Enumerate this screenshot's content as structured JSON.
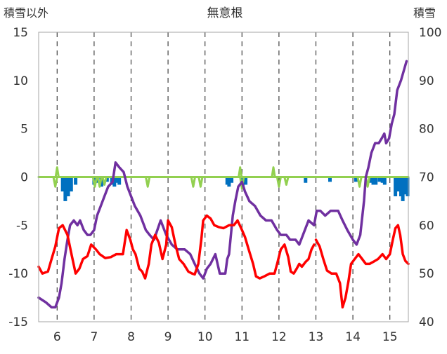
{
  "chart_data": {
    "type": "line",
    "title": "無意根",
    "y_left_title": "積雪以外",
    "y_right_title": "積雪",
    "ylim_left": [
      -15,
      15
    ],
    "ylim_right": [
      40,
      100
    ],
    "xlim": [
      5.5,
      15.5
    ],
    "y_left_ticks": [
      "15",
      "10",
      "5",
      "0",
      "-5",
      "-10",
      "-15"
    ],
    "y_right_ticks": [
      "100",
      "90",
      "80",
      "70",
      "60",
      "50",
      "40"
    ],
    "x_ticks": [
      "6",
      "7",
      "8",
      "9",
      "10",
      "11",
      "12",
      "13",
      "14",
      "15"
    ],
    "grid": "dashed vertical at each x tick",
    "series": [
      {
        "key": "snow_depth",
        "color": "#7030a0",
        "axis": "right",
        "points": [
          [
            5.5,
            45
          ],
          [
            5.7,
            44
          ],
          [
            5.85,
            43
          ],
          [
            5.95,
            43
          ],
          [
            6.05,
            45
          ],
          [
            6.12,
            48
          ],
          [
            6.2,
            53
          ],
          [
            6.28,
            57
          ],
          [
            6.35,
            60
          ],
          [
            6.45,
            61
          ],
          [
            6.55,
            60
          ],
          [
            6.62,
            61
          ],
          [
            6.72,
            59
          ],
          [
            6.82,
            58
          ],
          [
            6.9,
            58
          ],
          [
            7.0,
            59
          ],
          [
            7.08,
            62
          ],
          [
            7.18,
            64
          ],
          [
            7.28,
            66
          ],
          [
            7.38,
            68
          ],
          [
            7.5,
            69
          ],
          [
            7.58,
            73
          ],
          [
            7.68,
            72
          ],
          [
            7.8,
            71
          ],
          [
            7.9,
            68
          ],
          [
            8.0,
            66
          ],
          [
            8.1,
            64
          ],
          [
            8.25,
            62
          ],
          [
            8.4,
            59
          ],
          [
            8.5,
            58
          ],
          [
            8.62,
            57
          ],
          [
            8.8,
            61
          ],
          [
            8.95,
            58
          ],
          [
            9.1,
            56
          ],
          [
            9.25,
            55
          ],
          [
            9.45,
            55
          ],
          [
            9.6,
            54
          ],
          [
            9.72,
            52
          ],
          [
            9.85,
            50
          ],
          [
            9.95,
            49
          ],
          [
            10.05,
            51
          ],
          [
            10.15,
            52
          ],
          [
            10.28,
            54
          ],
          [
            10.4,
            50
          ],
          [
            10.55,
            50
          ],
          [
            10.6,
            53
          ],
          [
            10.65,
            54
          ],
          [
            10.75,
            62
          ],
          [
            10.82,
            65
          ],
          [
            10.9,
            68
          ],
          [
            11.0,
            69
          ],
          [
            11.08,
            67
          ],
          [
            11.2,
            65
          ],
          [
            11.35,
            64
          ],
          [
            11.5,
            62
          ],
          [
            11.65,
            61
          ],
          [
            11.8,
            61
          ],
          [
            11.95,
            59
          ],
          [
            12.05,
            58
          ],
          [
            12.2,
            58
          ],
          [
            12.3,
            57
          ],
          [
            12.45,
            57
          ],
          [
            12.55,
            56
          ],
          [
            12.65,
            58
          ],
          [
            12.8,
            61
          ],
          [
            12.95,
            60
          ],
          [
            13.02,
            63
          ],
          [
            13.12,
            63
          ],
          [
            13.25,
            62
          ],
          [
            13.4,
            63
          ],
          [
            13.5,
            63
          ],
          [
            13.6,
            63
          ],
          [
            13.72,
            61
          ],
          [
            13.85,
            59
          ],
          [
            14.0,
            57
          ],
          [
            14.1,
            56
          ],
          [
            14.2,
            58
          ],
          [
            14.3,
            65
          ],
          [
            14.35,
            70
          ],
          [
            14.42,
            72
          ],
          [
            14.5,
            75
          ],
          [
            14.6,
            77
          ],
          [
            14.7,
            77
          ],
          [
            14.78,
            78
          ],
          [
            14.85,
            79
          ],
          [
            14.9,
            77
          ],
          [
            14.98,
            78
          ],
          [
            15.05,
            81
          ],
          [
            15.12,
            83
          ],
          [
            15.2,
            88
          ],
          [
            15.3,
            90
          ],
          [
            15.45,
            94
          ]
        ]
      },
      {
        "key": "temperature",
        "color": "#ff0000",
        "axis": "left",
        "points": [
          [
            5.5,
            -9.3
          ],
          [
            5.6,
            -10.0
          ],
          [
            5.75,
            -9.8
          ],
          [
            5.85,
            -8.5
          ],
          [
            5.95,
            -7.2
          ],
          [
            6.05,
            -5.3
          ],
          [
            6.15,
            -5.0
          ],
          [
            6.28,
            -6.0
          ],
          [
            6.4,
            -8.2
          ],
          [
            6.5,
            -10.0
          ],
          [
            6.6,
            -9.5
          ],
          [
            6.7,
            -8.5
          ],
          [
            6.82,
            -8.2
          ],
          [
            6.92,
            -7.0
          ],
          [
            7.05,
            -7.5
          ],
          [
            7.15,
            -8.0
          ],
          [
            7.3,
            -8.4
          ],
          [
            7.45,
            -8.3
          ],
          [
            7.6,
            -8.0
          ],
          [
            7.78,
            -8.0
          ],
          [
            7.88,
            -5.5
          ],
          [
            7.98,
            -6.5
          ],
          [
            8.05,
            -7.5
          ],
          [
            8.12,
            -8.0
          ],
          [
            8.22,
            -9.5
          ],
          [
            8.3,
            -9.8
          ],
          [
            8.38,
            -10.5
          ],
          [
            8.48,
            -9.0
          ],
          [
            8.55,
            -7.0
          ],
          [
            8.65,
            -6.0
          ],
          [
            8.75,
            -6.8
          ],
          [
            8.85,
            -8.5
          ],
          [
            8.95,
            -7.0
          ],
          [
            9.0,
            -4.5
          ],
          [
            9.1,
            -5.2
          ],
          [
            9.2,
            -7.0
          ],
          [
            9.3,
            -8.5
          ],
          [
            9.42,
            -9.0
          ],
          [
            9.55,
            -9.8
          ],
          [
            9.65,
            -10.0
          ],
          [
            9.72,
            -10.1
          ],
          [
            9.82,
            -9.0
          ],
          [
            9.9,
            -6.5
          ],
          [
            9.95,
            -4.5
          ],
          [
            10.05,
            -4.0
          ],
          [
            10.15,
            -4.3
          ],
          [
            10.25,
            -5.0
          ],
          [
            10.38,
            -5.2
          ],
          [
            10.5,
            -5.3
          ],
          [
            10.65,
            -5.0
          ],
          [
            10.78,
            -5.0
          ],
          [
            10.88,
            -4.5
          ],
          [
            11.0,
            -5.5
          ],
          [
            11.08,
            -6.2
          ],
          [
            11.18,
            -7.5
          ],
          [
            11.3,
            -9.0
          ],
          [
            11.38,
            -10.3
          ],
          [
            11.48,
            -10.5
          ],
          [
            11.6,
            -10.3
          ],
          [
            11.75,
            -10.0
          ],
          [
            11.88,
            -10.0
          ],
          [
            11.95,
            -9.0
          ],
          [
            12.05,
            -7.5
          ],
          [
            12.15,
            -7.0
          ],
          [
            12.25,
            -8.3
          ],
          [
            12.32,
            -9.8
          ],
          [
            12.4,
            -10.0
          ],
          [
            12.48,
            -9.5
          ],
          [
            12.55,
            -9.0
          ],
          [
            12.62,
            -9.3
          ],
          [
            12.72,
            -8.8
          ],
          [
            12.8,
            -8.5
          ],
          [
            12.88,
            -7.5
          ],
          [
            12.95,
            -7.0
          ]
        ]
      },
      {
        "key": "temperature_2",
        "color": "#ff0000",
        "axis": "left",
        "points": [
          [
            13.0,
            -6.5
          ],
          [
            13.1,
            -7.2
          ],
          [
            13.2,
            -8.5
          ],
          [
            13.3,
            -9.7
          ],
          [
            13.42,
            -10.0
          ],
          [
            13.55,
            -10.0
          ],
          [
            13.65,
            -11.0
          ],
          [
            13.72,
            -13.5
          ],
          [
            13.8,
            -12.5
          ],
          [
            13.88,
            -10.8
          ],
          [
            13.95,
            -9.0
          ],
          [
            14.05,
            -8.5
          ],
          [
            14.15,
            -8.0
          ],
          [
            14.25,
            -8.5
          ],
          [
            14.35,
            -9.0
          ],
          [
            14.45,
            -9.0
          ],
          [
            14.55,
            -8.8
          ],
          [
            14.68,
            -8.5
          ],
          [
            14.8,
            -8.0
          ],
          [
            14.9,
            -8.5
          ],
          [
            15.0,
            -8.0
          ],
          [
            15.08,
            -6.5
          ],
          [
            15.15,
            -5.3
          ],
          [
            15.22,
            -5.0
          ],
          [
            15.28,
            -6.0
          ],
          [
            15.35,
            -8.0
          ],
          [
            15.42,
            -8.7
          ],
          [
            15.5,
            -9.0
          ]
        ]
      },
      {
        "key": "green_zero_line",
        "color": "#92d050",
        "axis": "left",
        "points": [
          [
            5.5,
            0
          ],
          [
            15.5,
            0
          ]
        ]
      }
    ],
    "green_dips": [
      [
        5.95,
        -1.0
      ],
      [
        7.02,
        -1.0
      ],
      [
        7.15,
        -1.0
      ],
      [
        7.28,
        -0.8
      ],
      [
        8.45,
        -1.0
      ],
      [
        9.68,
        -1.0
      ],
      [
        9.88,
        -1.0
      ],
      [
        11.0,
        -1.2
      ],
      [
        12.0,
        -1.0
      ],
      [
        12.2,
        -0.8
      ],
      [
        14.18,
        -1.0
      ],
      [
        14.4,
        -1.0
      ]
    ],
    "green_peaks": [
      [
        6.0,
        1.0
      ],
      [
        10.95,
        1.0
      ],
      [
        11.85,
        1.0
      ]
    ],
    "precip_bars": [
      [
        6.15,
        -1.5
      ],
      [
        6.22,
        -2.5
      ],
      [
        6.3,
        -2.0
      ],
      [
        6.38,
        -1.5
      ],
      [
        6.5,
        -0.8
      ],
      [
        7.0,
        -0.8
      ],
      [
        7.1,
        -0.6
      ],
      [
        7.2,
        -1.0
      ],
      [
        7.35,
        -0.5
      ],
      [
        7.48,
        -0.8
      ],
      [
        7.55,
        -1.0
      ],
      [
        7.6,
        -0.6
      ],
      [
        7.68,
        -0.8
      ],
      [
        10.6,
        -0.8
      ],
      [
        10.65,
        -1.0
      ],
      [
        10.72,
        -0.6
      ],
      [
        11.02,
        -1.0
      ],
      [
        11.1,
        -0.8
      ],
      [
        12.72,
        -0.6
      ],
      [
        13.38,
        -0.5
      ],
      [
        14.08,
        -0.5
      ],
      [
        14.48,
        -0.6
      ],
      [
        14.55,
        -0.8
      ],
      [
        14.62,
        -0.8
      ],
      [
        14.72,
        -0.5
      ],
      [
        14.8,
        -0.6
      ],
      [
        14.86,
        -0.8
      ],
      [
        15.15,
        -2.0
      ],
      [
        15.22,
        -1.5
      ],
      [
        15.3,
        -2.0
      ],
      [
        15.35,
        -2.5
      ],
      [
        15.42,
        -1.8
      ],
      [
        15.48,
        -2.0
      ]
    ]
  }
}
